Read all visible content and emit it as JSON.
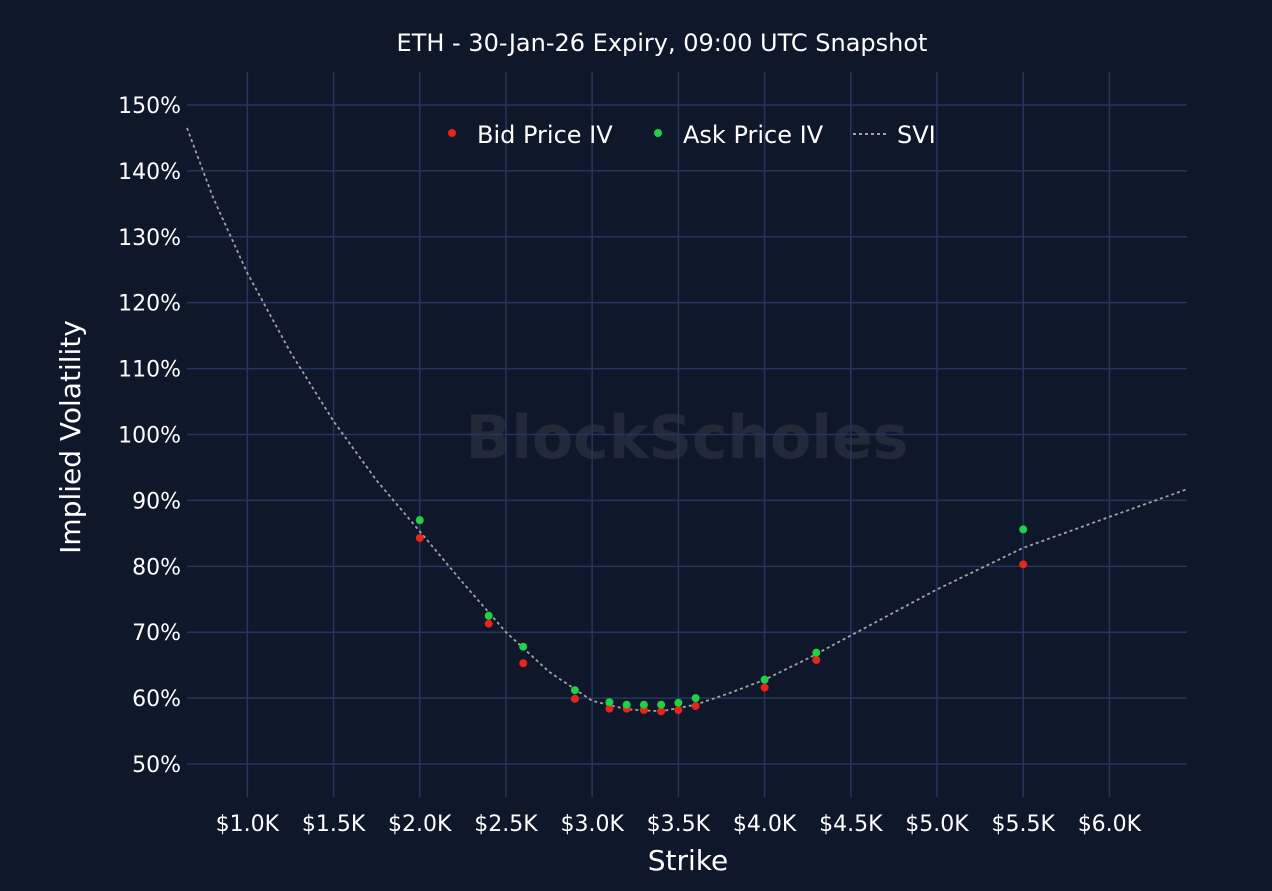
{
  "chart_data": {
    "type": "scatter",
    "title": "ETH - 30-Jan-26 Expiry, 09:00 UTC Snapshot",
    "xlabel": "Strike",
    "ylabel": "Implied Volatility",
    "watermark": "BlockScholes",
    "xlim": [
      650,
      6450
    ],
    "ylim": [
      45,
      155
    ],
    "x_ticks": [
      {
        "value": 1000,
        "label": "$1.0K"
      },
      {
        "value": 1500,
        "label": "$1.5K"
      },
      {
        "value": 2000,
        "label": "$2.0K"
      },
      {
        "value": 2500,
        "label": "$2.5K"
      },
      {
        "value": 3000,
        "label": "$3.0K"
      },
      {
        "value": 3500,
        "label": "$3.5K"
      },
      {
        "value": 4000,
        "label": "$4.0K"
      },
      {
        "value": 4500,
        "label": "$4.5K"
      },
      {
        "value": 5000,
        "label": "$5.0K"
      },
      {
        "value": 5500,
        "label": "$5.5K"
      },
      {
        "value": 6000,
        "label": "$6.0K"
      }
    ],
    "y_ticks": [
      {
        "value": 50,
        "label": "50%"
      },
      {
        "value": 60,
        "label": "60%"
      },
      {
        "value": 70,
        "label": "70%"
      },
      {
        "value": 80,
        "label": "80%"
      },
      {
        "value": 90,
        "label": "90%"
      },
      {
        "value": 100,
        "label": "100%"
      },
      {
        "value": 110,
        "label": "110%"
      },
      {
        "value": 120,
        "label": "120%"
      },
      {
        "value": 130,
        "label": "130%"
      },
      {
        "value": 140,
        "label": "140%"
      },
      {
        "value": 150,
        "label": "150%"
      }
    ],
    "legend_position": "top-center",
    "grid": true,
    "series": [
      {
        "name": "Bid Price IV",
        "kind": "scatter",
        "color": "#e8251b",
        "points": [
          {
            "x": 2000,
            "y": 84.3
          },
          {
            "x": 2400,
            "y": 71.3
          },
          {
            "x": 2600,
            "y": 65.3
          },
          {
            "x": 2900,
            "y": 59.9
          },
          {
            "x": 3100,
            "y": 58.4
          },
          {
            "x": 3200,
            "y": 58.4
          },
          {
            "x": 3300,
            "y": 58.2
          },
          {
            "x": 3400,
            "y": 58.0
          },
          {
            "x": 3500,
            "y": 58.2
          },
          {
            "x": 3600,
            "y": 58.8
          },
          {
            "x": 4000,
            "y": 61.6
          },
          {
            "x": 4300,
            "y": 65.8
          },
          {
            "x": 5500,
            "y": 80.3
          }
        ]
      },
      {
        "name": "Ask Price IV",
        "kind": "scatter",
        "color": "#1ed146",
        "points": [
          {
            "x": 2000,
            "y": 87.0
          },
          {
            "x": 2400,
            "y": 72.5
          },
          {
            "x": 2600,
            "y": 67.8
          },
          {
            "x": 2900,
            "y": 61.2
          },
          {
            "x": 3100,
            "y": 59.4
          },
          {
            "x": 3200,
            "y": 59.0
          },
          {
            "x": 3300,
            "y": 59.0
          },
          {
            "x": 3400,
            "y": 59.0
          },
          {
            "x": 3500,
            "y": 59.3
          },
          {
            "x": 3600,
            "y": 60.0
          },
          {
            "x": 4000,
            "y": 62.8
          },
          {
            "x": 4300,
            "y": 66.9
          },
          {
            "x": 5500,
            "y": 85.6
          }
        ]
      },
      {
        "name": "SVI",
        "kind": "line",
        "style": "dotted",
        "color": "#a3a3a3",
        "points": [
          {
            "x": 650,
            "y": 146.5
          },
          {
            "x": 800,
            "y": 136.0
          },
          {
            "x": 1000,
            "y": 124.5
          },
          {
            "x": 1250,
            "y": 112.5
          },
          {
            "x": 1500,
            "y": 102.0
          },
          {
            "x": 1750,
            "y": 93.0
          },
          {
            "x": 2000,
            "y": 85.3
          },
          {
            "x": 2250,
            "y": 77.5
          },
          {
            "x": 2500,
            "y": 70.0
          },
          {
            "x": 2750,
            "y": 64.0
          },
          {
            "x": 3000,
            "y": 59.6
          },
          {
            "x": 3200,
            "y": 58.3
          },
          {
            "x": 3400,
            "y": 58.0
          },
          {
            "x": 3600,
            "y": 59.0
          },
          {
            "x": 3800,
            "y": 60.8
          },
          {
            "x": 4000,
            "y": 62.8
          },
          {
            "x": 4250,
            "y": 66.0
          },
          {
            "x": 4500,
            "y": 69.5
          },
          {
            "x": 5000,
            "y": 76.5
          },
          {
            "x": 5500,
            "y": 82.8
          },
          {
            "x": 6000,
            "y": 87.5
          },
          {
            "x": 6450,
            "y": 91.7
          }
        ]
      }
    ]
  },
  "colors": {
    "background": "#0f172a",
    "grid": "#25365c",
    "text": "#ffffff",
    "watermark": "#222a3a"
  }
}
